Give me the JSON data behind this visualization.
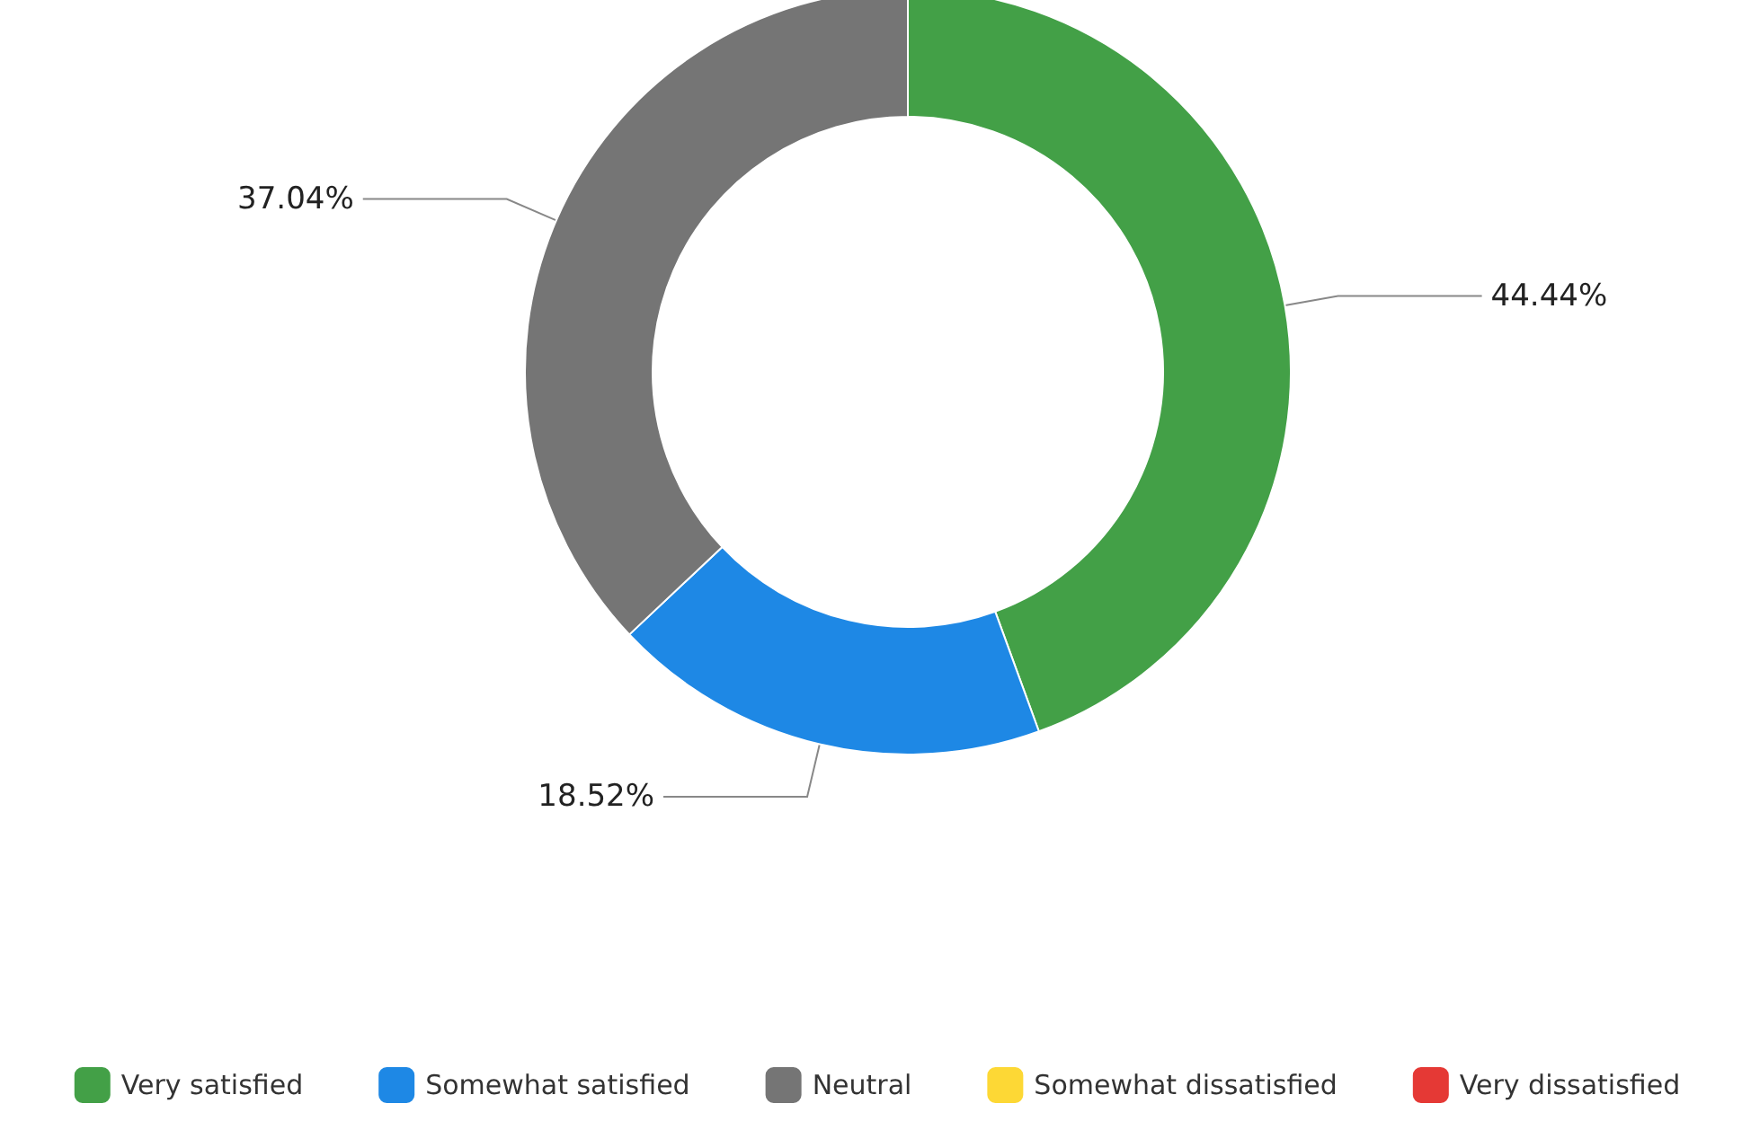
{
  "chart_data": {
    "type": "donut",
    "categories": [
      "Very satisfied",
      "Somewhat satisfied",
      "Neutral",
      "Somewhat dissatisfied",
      "Very dissatisfied"
    ],
    "values": [
      44.44,
      18.52,
      37.04,
      0,
      0
    ],
    "colors": [
      "#43a047",
      "#1e88e5",
      "#757575",
      "#fdd835",
      "#e53935"
    ],
    "value_labels": [
      "44.44%",
      "18.52%",
      "37.04%",
      null,
      null
    ],
    "legend": "bottom"
  }
}
